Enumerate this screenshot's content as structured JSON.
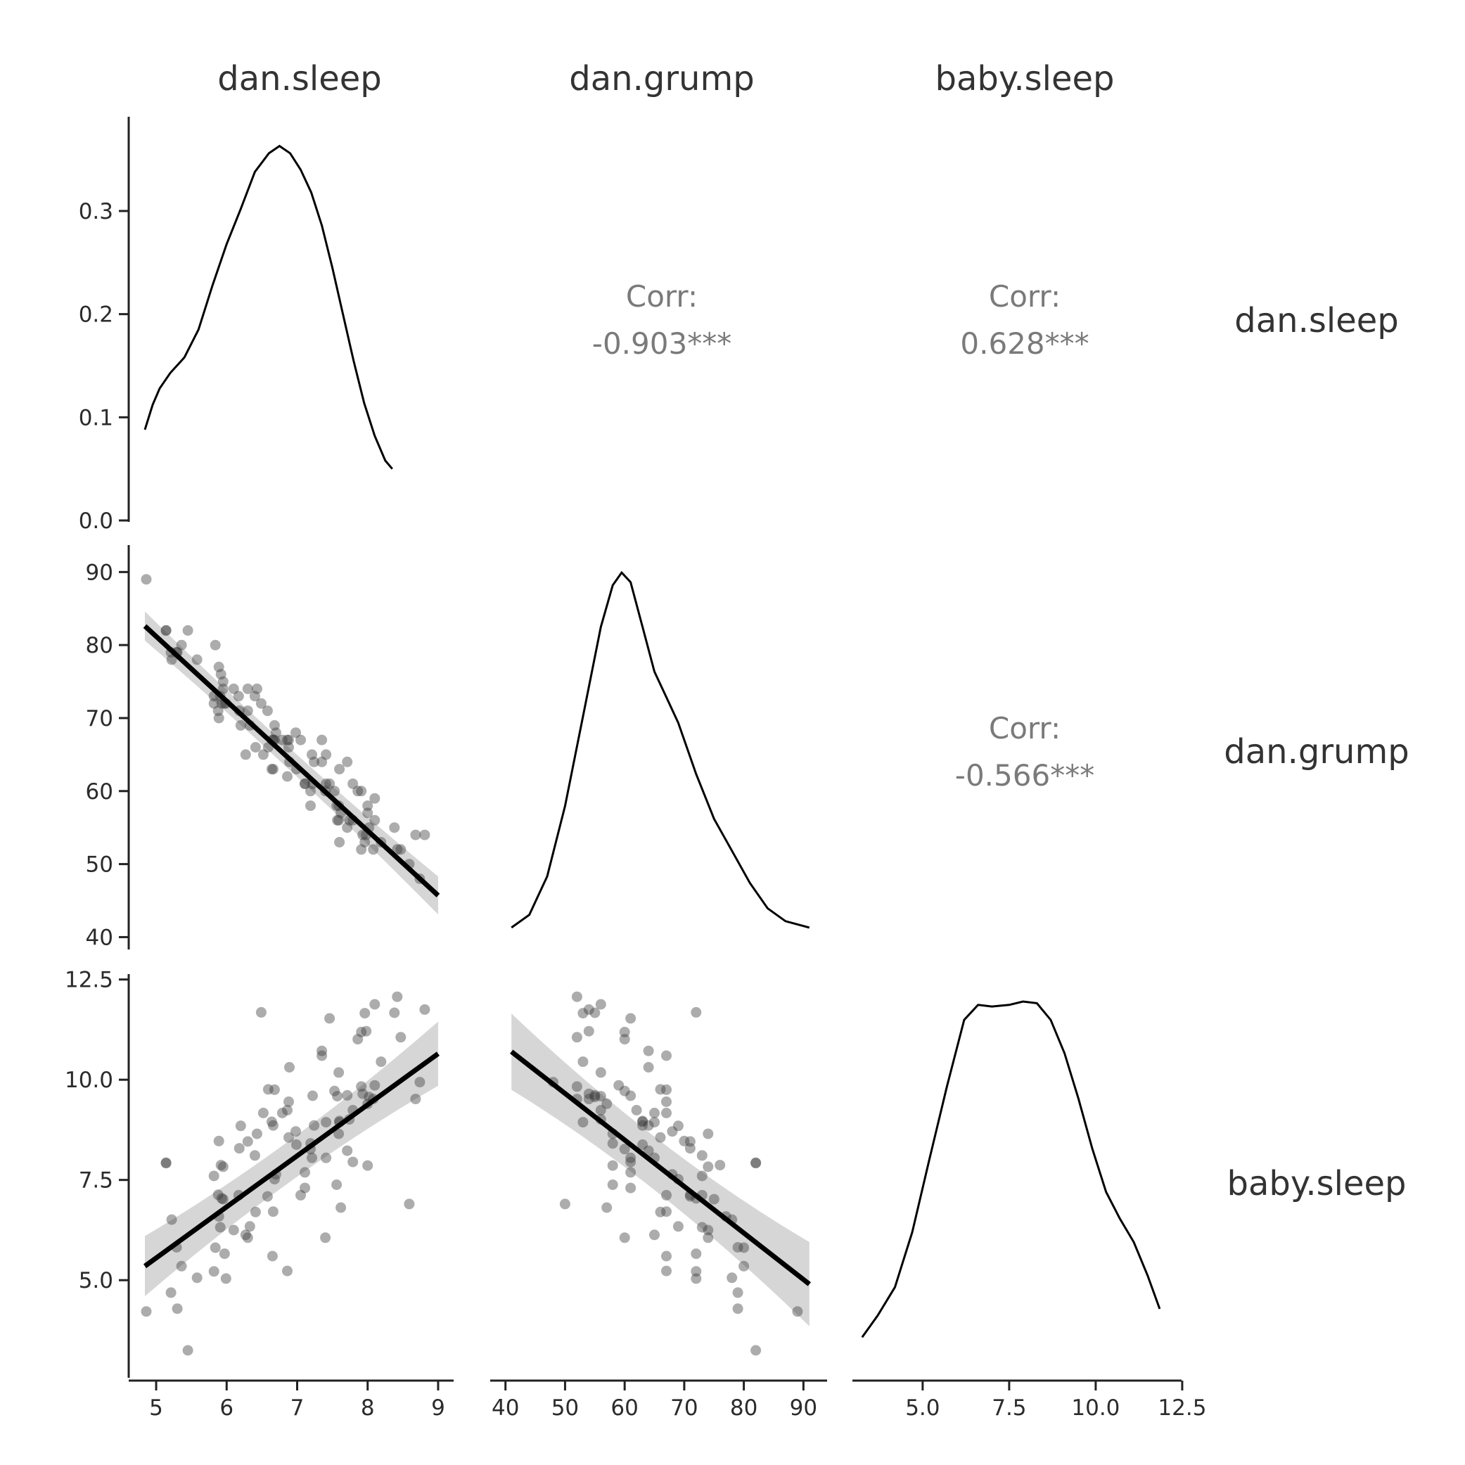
{
  "chart_data": {
    "type": "scatter-matrix",
    "variables": [
      "dan.sleep",
      "dan.grump",
      "baby.sleep"
    ],
    "strip_labels": {
      "top": [
        "dan.sleep",
        "dan.grump",
        "baby.sleep"
      ],
      "right": [
        "dan.sleep",
        "dan.grump",
        "baby.sleep"
      ]
    },
    "x_ranges": {
      "dan.sleep": [
        4.85,
        9.18
      ],
      "dan.grump": [
        38.5,
        93.5
      ],
      "baby.sleep": [
        2.95,
        12.4
      ]
    },
    "x_ticks": {
      "dan.sleep": [
        "5",
        "6",
        "7",
        "8",
        "9"
      ],
      "dan.grump": [
        "40",
        "50",
        "60",
        "70",
        "80",
        "90"
      ],
      "baby.sleep": [
        "5.0",
        "7.5",
        "10.0",
        "12.5"
      ]
    },
    "y_ticks": {
      "row1_density": [
        "0.0",
        "0.1",
        "0.2",
        "0.3"
      ],
      "dan.grump": [
        "40",
        "50",
        "60",
        "70",
        "80",
        "90"
      ],
      "baby.sleep": [
        "5.0",
        "7.5",
        "10.0",
        "12.5"
      ]
    },
    "y_ranges": {
      "row1_density": [
        0.0,
        0.39
      ],
      "dan.grump": [
        38.5,
        93.5
      ],
      "baby.sleep": [
        2.6,
        12.6
      ]
    },
    "correlations": [
      {
        "row": "dan.sleep",
        "col": "dan.grump",
        "label": "Corr:",
        "value": "-0.903***"
      },
      {
        "row": "dan.sleep",
        "col": "baby.sleep",
        "label": "Corr:",
        "value": "0.628***"
      },
      {
        "row": "dan.grump",
        "col": "baby.sleep",
        "label": "Corr:",
        "value": "-0.566***"
      }
    ],
    "densities": {
      "dan.sleep": [
        [
          4.84,
          0.088
        ],
        [
          4.95,
          0.112
        ],
        [
          5.05,
          0.128
        ],
        [
          5.2,
          0.143
        ],
        [
          5.4,
          0.158
        ],
        [
          5.6,
          0.185
        ],
        [
          5.8,
          0.228
        ],
        [
          6.0,
          0.268
        ],
        [
          6.2,
          0.302
        ],
        [
          6.4,
          0.338
        ],
        [
          6.6,
          0.356
        ],
        [
          6.75,
          0.363
        ],
        [
          6.9,
          0.356
        ],
        [
          7.05,
          0.34
        ],
        [
          7.2,
          0.318
        ],
        [
          7.35,
          0.286
        ],
        [
          7.5,
          0.245
        ],
        [
          7.65,
          0.2
        ],
        [
          7.8,
          0.155
        ],
        [
          7.95,
          0.114
        ],
        [
          8.1,
          0.082
        ],
        [
          8.25,
          0.058
        ],
        [
          8.35,
          0.05
        ]
      ],
      "dan.grump": [
        [
          41,
          0.002
        ],
        [
          44,
          0.006
        ],
        [
          47,
          0.018
        ],
        [
          50,
          0.04
        ],
        [
          53,
          0.068
        ],
        [
          56,
          0.096
        ],
        [
          58,
          0.109
        ],
        [
          59.5,
          0.113
        ],
        [
          61,
          0.11
        ],
        [
          63,
          0.096
        ],
        [
          65,
          0.082
        ],
        [
          67,
          0.074
        ],
        [
          69,
          0.066
        ],
        [
          72,
          0.05
        ],
        [
          75,
          0.036
        ],
        [
          78,
          0.026
        ],
        [
          81,
          0.016
        ],
        [
          84,
          0.008
        ],
        [
          87,
          0.004
        ],
        [
          91,
          0.002
        ]
      ],
      "baby.sleep": [
        [
          3.25,
          0.015
        ],
        [
          3.7,
          0.028
        ],
        [
          4.2,
          0.045
        ],
        [
          4.7,
          0.078
        ],
        [
          5.2,
          0.122
        ],
        [
          5.7,
          0.165
        ],
        [
          6.2,
          0.205
        ],
        [
          6.6,
          0.214
        ],
        [
          7.0,
          0.213
        ],
        [
          7.5,
          0.214
        ],
        [
          7.9,
          0.216
        ],
        [
          8.3,
          0.215
        ],
        [
          8.7,
          0.205
        ],
        [
          9.1,
          0.185
        ],
        [
          9.5,
          0.158
        ],
        [
          9.9,
          0.128
        ],
        [
          10.3,
          0.102
        ],
        [
          10.7,
          0.086
        ],
        [
          11.1,
          0.072
        ],
        [
          11.5,
          0.052
        ],
        [
          11.85,
          0.032
        ]
      ]
    },
    "density_peaks": {
      "dan.sleep": 0.365,
      "dan.grump": 0.113,
      "baby.sleep": 0.216
    },
    "regressions": [
      {
        "x": "dan.sleep",
        "y": "dan.grump",
        "x0": 4.84,
        "x1": 9.0,
        "y0": 82.6,
        "y1": 45.7,
        "ci0": 2.0,
        "ci1": 2.6
      },
      {
        "x": "dan.sleep",
        "y": "baby.sleep",
        "x0": 4.84,
        "x1": 9.0,
        "y0": 5.35,
        "y1": 10.65,
        "ci0": 0.75,
        "ci1": 0.8
      },
      {
        "x": "dan.grump",
        "y": "baby.sleep",
        "x0": 41.0,
        "x1": 91.0,
        "y0": 10.7,
        "y1": 4.9,
        "ci0": 0.95,
        "ci1": 1.05
      }
    ],
    "points": [
      [
        7.59,
        56,
        10.18
      ],
      [
        7.91,
        60,
        11.19
      ],
      [
        5.14,
        82,
        7.92
      ],
      [
        7.71,
        55,
        9.61
      ],
      [
        6.68,
        67,
        9.75
      ],
      [
        5.99,
        72,
        5.04
      ],
      [
        8.19,
        53,
        10.45
      ],
      [
        7.19,
        60,
        8.27
      ],
      [
        7.4,
        60,
        6.06
      ],
      [
        6.58,
        71,
        7.09
      ],
      [
        6.49,
        72,
        11.68
      ],
      [
        6.27,
        65,
        6.13
      ],
      [
        5.95,
        74,
        7.83
      ],
      [
        6.65,
        67,
        5.6
      ],
      [
        6.41,
        66,
        6.7
      ],
      [
        6.33,
        69,
        6.34
      ],
      [
        6.3,
        71,
        8.46
      ],
      [
        8.47,
        52,
        11.06
      ],
      [
        7.21,
        65,
        8.05
      ],
      [
        7.53,
        60,
        9.72
      ],
      [
        8.0,
        57,
        9.4
      ],
      [
        7.35,
        64,
        10.72
      ],
      [
        6.86,
        67,
        5.23
      ],
      [
        7.86,
        60,
        11.01
      ],
      [
        4.86,
        89,
        4.22
      ],
      [
        7.22,
        61,
        9.6
      ],
      [
        5.84,
        80,
        5.81
      ],
      [
        6.7,
        68,
        7.64
      ],
      [
        5.97,
        72,
        5.66
      ],
      [
        7.11,
        61,
        7.3
      ],
      [
        6.66,
        63,
        8.86
      ],
      [
        8.68,
        54,
        9.52
      ],
      [
        7.41,
        65,
        8.94
      ],
      [
        5.89,
        70,
        8.47
      ],
      [
        7.71,
        64,
        8.23
      ],
      [
        5.82,
        72,
        5.22
      ],
      [
        6.88,
        66,
        8.56
      ],
      [
        7.6,
        53,
        8.94
      ],
      [
        5.95,
        75,
        7.02
      ],
      [
        6.59,
        66,
        9.76
      ],
      [
        7.74,
        56,
        9.01
      ],
      [
        8.02,
        55,
        9.57
      ],
      [
        5.93,
        72,
        7.04
      ],
      [
        7.19,
        58,
        8.41
      ],
      [
        6.68,
        69,
        7.52
      ],
      [
        7.41,
        61,
        8.05
      ],
      [
        6.17,
        73,
        7.12
      ],
      [
        7.98,
        54,
        11.21
      ],
      [
        6.1,
        74,
        6.25
      ],
      [
        6.64,
        63,
        8.95
      ],
      [
        7.79,
        56,
        9.24
      ],
      [
        6.43,
        74,
        8.65
      ],
      [
        8.0,
        58,
        7.86
      ],
      [
        5.91,
        73,
        6.32
      ],
      [
        6.3,
        74,
        6.06
      ],
      [
        6.79,
        67,
        9.17
      ],
      [
        7.93,
        54,
        9.65
      ],
      [
        5.22,
        78,
        6.51
      ],
      [
        8.1,
        59,
        9.86
      ],
      [
        8.42,
        52,
        12.07
      ],
      [
        8.38,
        55,
        11.67
      ],
      [
        7.6,
        63,
        8.97
      ],
      [
        8.08,
        52,
        9.52
      ],
      [
        5.58,
        78,
        5.06
      ],
      [
        7.24,
        64,
        8.86
      ],
      [
        7.11,
        61,
        7.69
      ],
      [
        6.89,
        64,
        10.31
      ],
      [
        5.29,
        79,
        5.82
      ],
      [
        6.52,
        65,
        9.17
      ],
      [
        7.56,
        58,
        7.38
      ],
      [
        5.45,
        82,
        3.25
      ],
      [
        6.4,
        73,
        8.11
      ],
      [
        6.86,
        62,
        9.24
      ],
      [
        7.57,
        56,
        9.59
      ],
      [
        7.35,
        67,
        10.6
      ],
      [
        8.59,
        50,
        6.9
      ],
      [
        7.46,
        61,
        11.53
      ],
      [
        6.99,
        63,
        8.38
      ],
      [
        8.81,
        54,
        11.75
      ],
      [
        6.98,
        68,
        8.71
      ],
      [
        6.66,
        67,
        6.71
      ],
      [
        5.82,
        73,
        7.6
      ],
      [
        5.89,
        77,
        6.59
      ],
      [
        6.88,
        67,
        9.45
      ],
      [
        7.79,
        61,
        7.95
      ],
      [
        5.88,
        71,
        7.13
      ],
      [
        7.59,
        58,
        8.65
      ],
      [
        7.62,
        57,
        6.81
      ],
      [
        6.2,
        69,
        8.85
      ],
      [
        5.14,
        82,
        7.93
      ],
      [
        7.96,
        53,
        11.66
      ],
      [
        7.91,
        52,
        9.83
      ],
      [
        8.1,
        56,
        11.88
      ],
      [
        5.21,
        79,
        4.69
      ],
      [
        5.92,
        76,
        7.87
      ],
      [
        7.05,
        67,
        7.12
      ],
      [
        5.3,
        79,
        4.29
      ],
      [
        8.74,
        48,
        9.94
      ],
      [
        5.36,
        80,
        5.35
      ],
      [
        6.18,
        71,
        8.29
      ]
    ]
  }
}
